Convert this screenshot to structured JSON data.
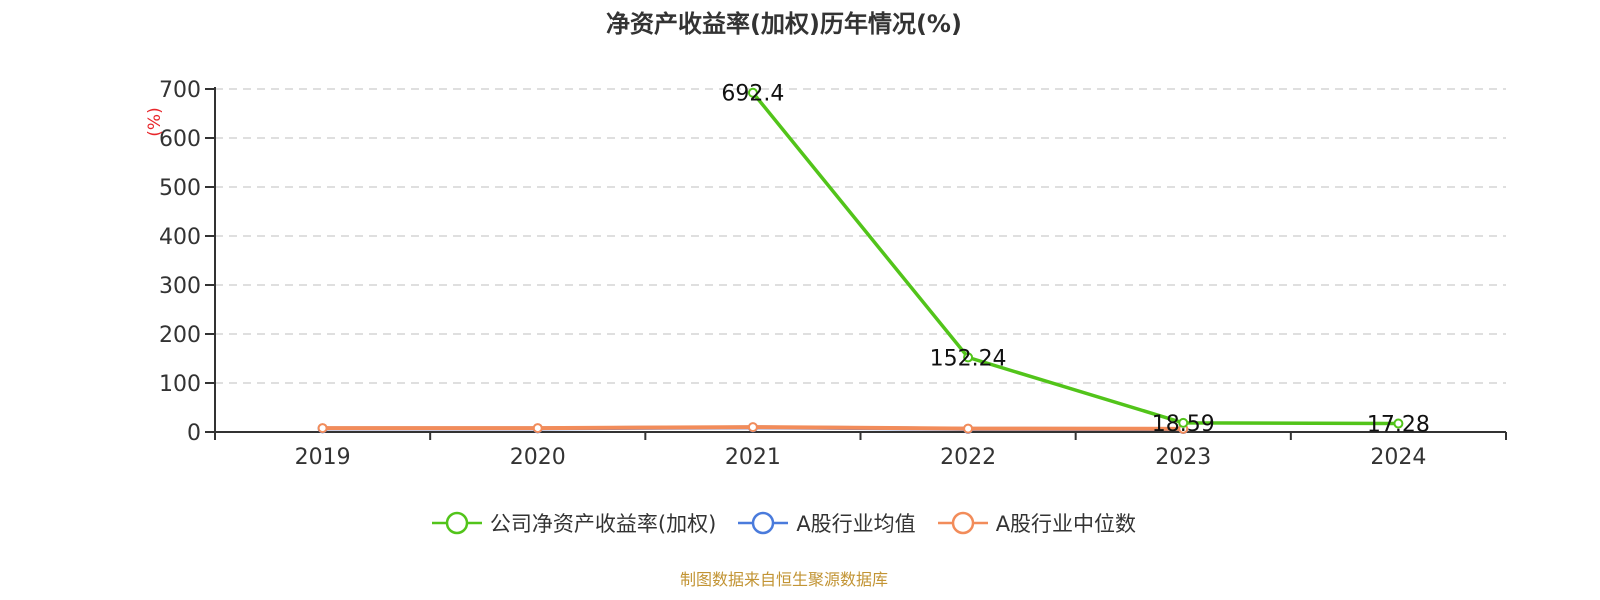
{
  "title": "净资产收益率(加权)历年情况(%)",
  "source_note": "制图数据来自恒生聚源数据库",
  "y_unit_label": "(%)",
  "colors": {
    "company": "#52c41a",
    "industry_mean": "#4a7bdc",
    "industry_median": "#f28c5a",
    "axis": "#333333",
    "grid": "#cccccc",
    "unit_label": "#e8262b",
    "source": "#c29434"
  },
  "legend": [
    {
      "label": "公司净资产收益率(加权)",
      "color": "#52c41a"
    },
    {
      "label": "A股行业均值",
      "color": "#4a7bdc"
    },
    {
      "label": "A股行业中位数",
      "color": "#f28c5a"
    }
  ],
  "chart_data": {
    "type": "line",
    "title": "净资产收益率(加权)历年情况(%)",
    "xlabel": "",
    "ylabel": "(%)",
    "categories": [
      "2019",
      "2020",
      "2021",
      "2022",
      "2023",
      "2024"
    ],
    "ylim": [
      0,
      700
    ],
    "yticks": [
      0,
      100,
      200,
      300,
      400,
      500,
      600,
      700
    ],
    "grid": true,
    "legend_position": "bottom",
    "series": [
      {
        "name": "公司净资产收益率(加权)",
        "values": [
          null,
          null,
          692.4,
          152.24,
          18.59,
          17.28
        ],
        "labels": [
          "",
          "",
          "692.4",
          "152.24",
          "18.59",
          "17.28"
        ]
      },
      {
        "name": "A股行业均值",
        "values": [
          7.5,
          7.5,
          9.5,
          6.5,
          6.0,
          null
        ]
      },
      {
        "name": "A股行业中位数",
        "values": [
          8.0,
          8.0,
          10.0,
          7.0,
          6.5,
          null
        ]
      }
    ]
  }
}
